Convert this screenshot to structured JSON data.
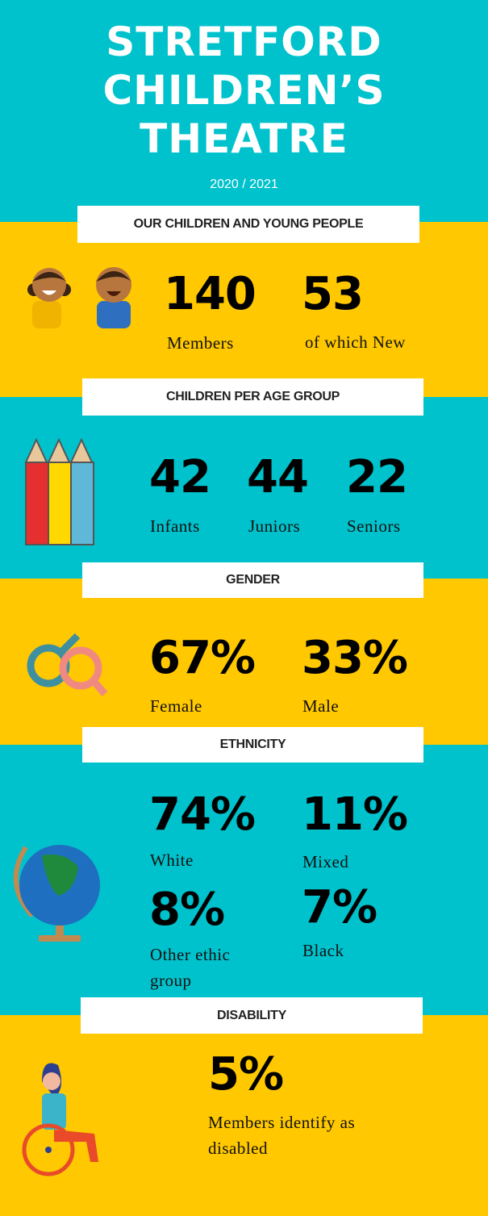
{
  "header": {
    "title_lines": [
      "STRETFORD",
      "CHILDREN’S",
      "THEATRE"
    ],
    "year": "2020 / 2021"
  },
  "sections": [
    {
      "heading": "OUR CHILDREN AND YOUNG PEOPLE",
      "stats": [
        {
          "value": "140",
          "label": "Members"
        },
        {
          "value": "53",
          "label": "of which New"
        }
      ]
    },
    {
      "heading": "CHILDREN PER AGE GROUP",
      "stats": [
        {
          "value": "42",
          "label": "Infants"
        },
        {
          "value": "44",
          "label": "Juniors"
        },
        {
          "value": "22",
          "label": "Seniors"
        }
      ]
    },
    {
      "heading": "GENDER",
      "stats": [
        {
          "value": "67%",
          "label": "Female"
        },
        {
          "value": "33%",
          "label": "Male"
        }
      ]
    },
    {
      "heading": "ETHNICITY",
      "stats": [
        {
          "value": "74%",
          "label": "White"
        },
        {
          "value": "11%",
          "label": "Mixed"
        },
        {
          "value": "8%",
          "label": "Other ethic group"
        },
        {
          "value": "7%",
          "label": "Black"
        }
      ]
    },
    {
      "heading": "DISABILITY",
      "stats": [
        {
          "value": "5%",
          "label": "Members identify as disabled"
        }
      ]
    }
  ]
}
